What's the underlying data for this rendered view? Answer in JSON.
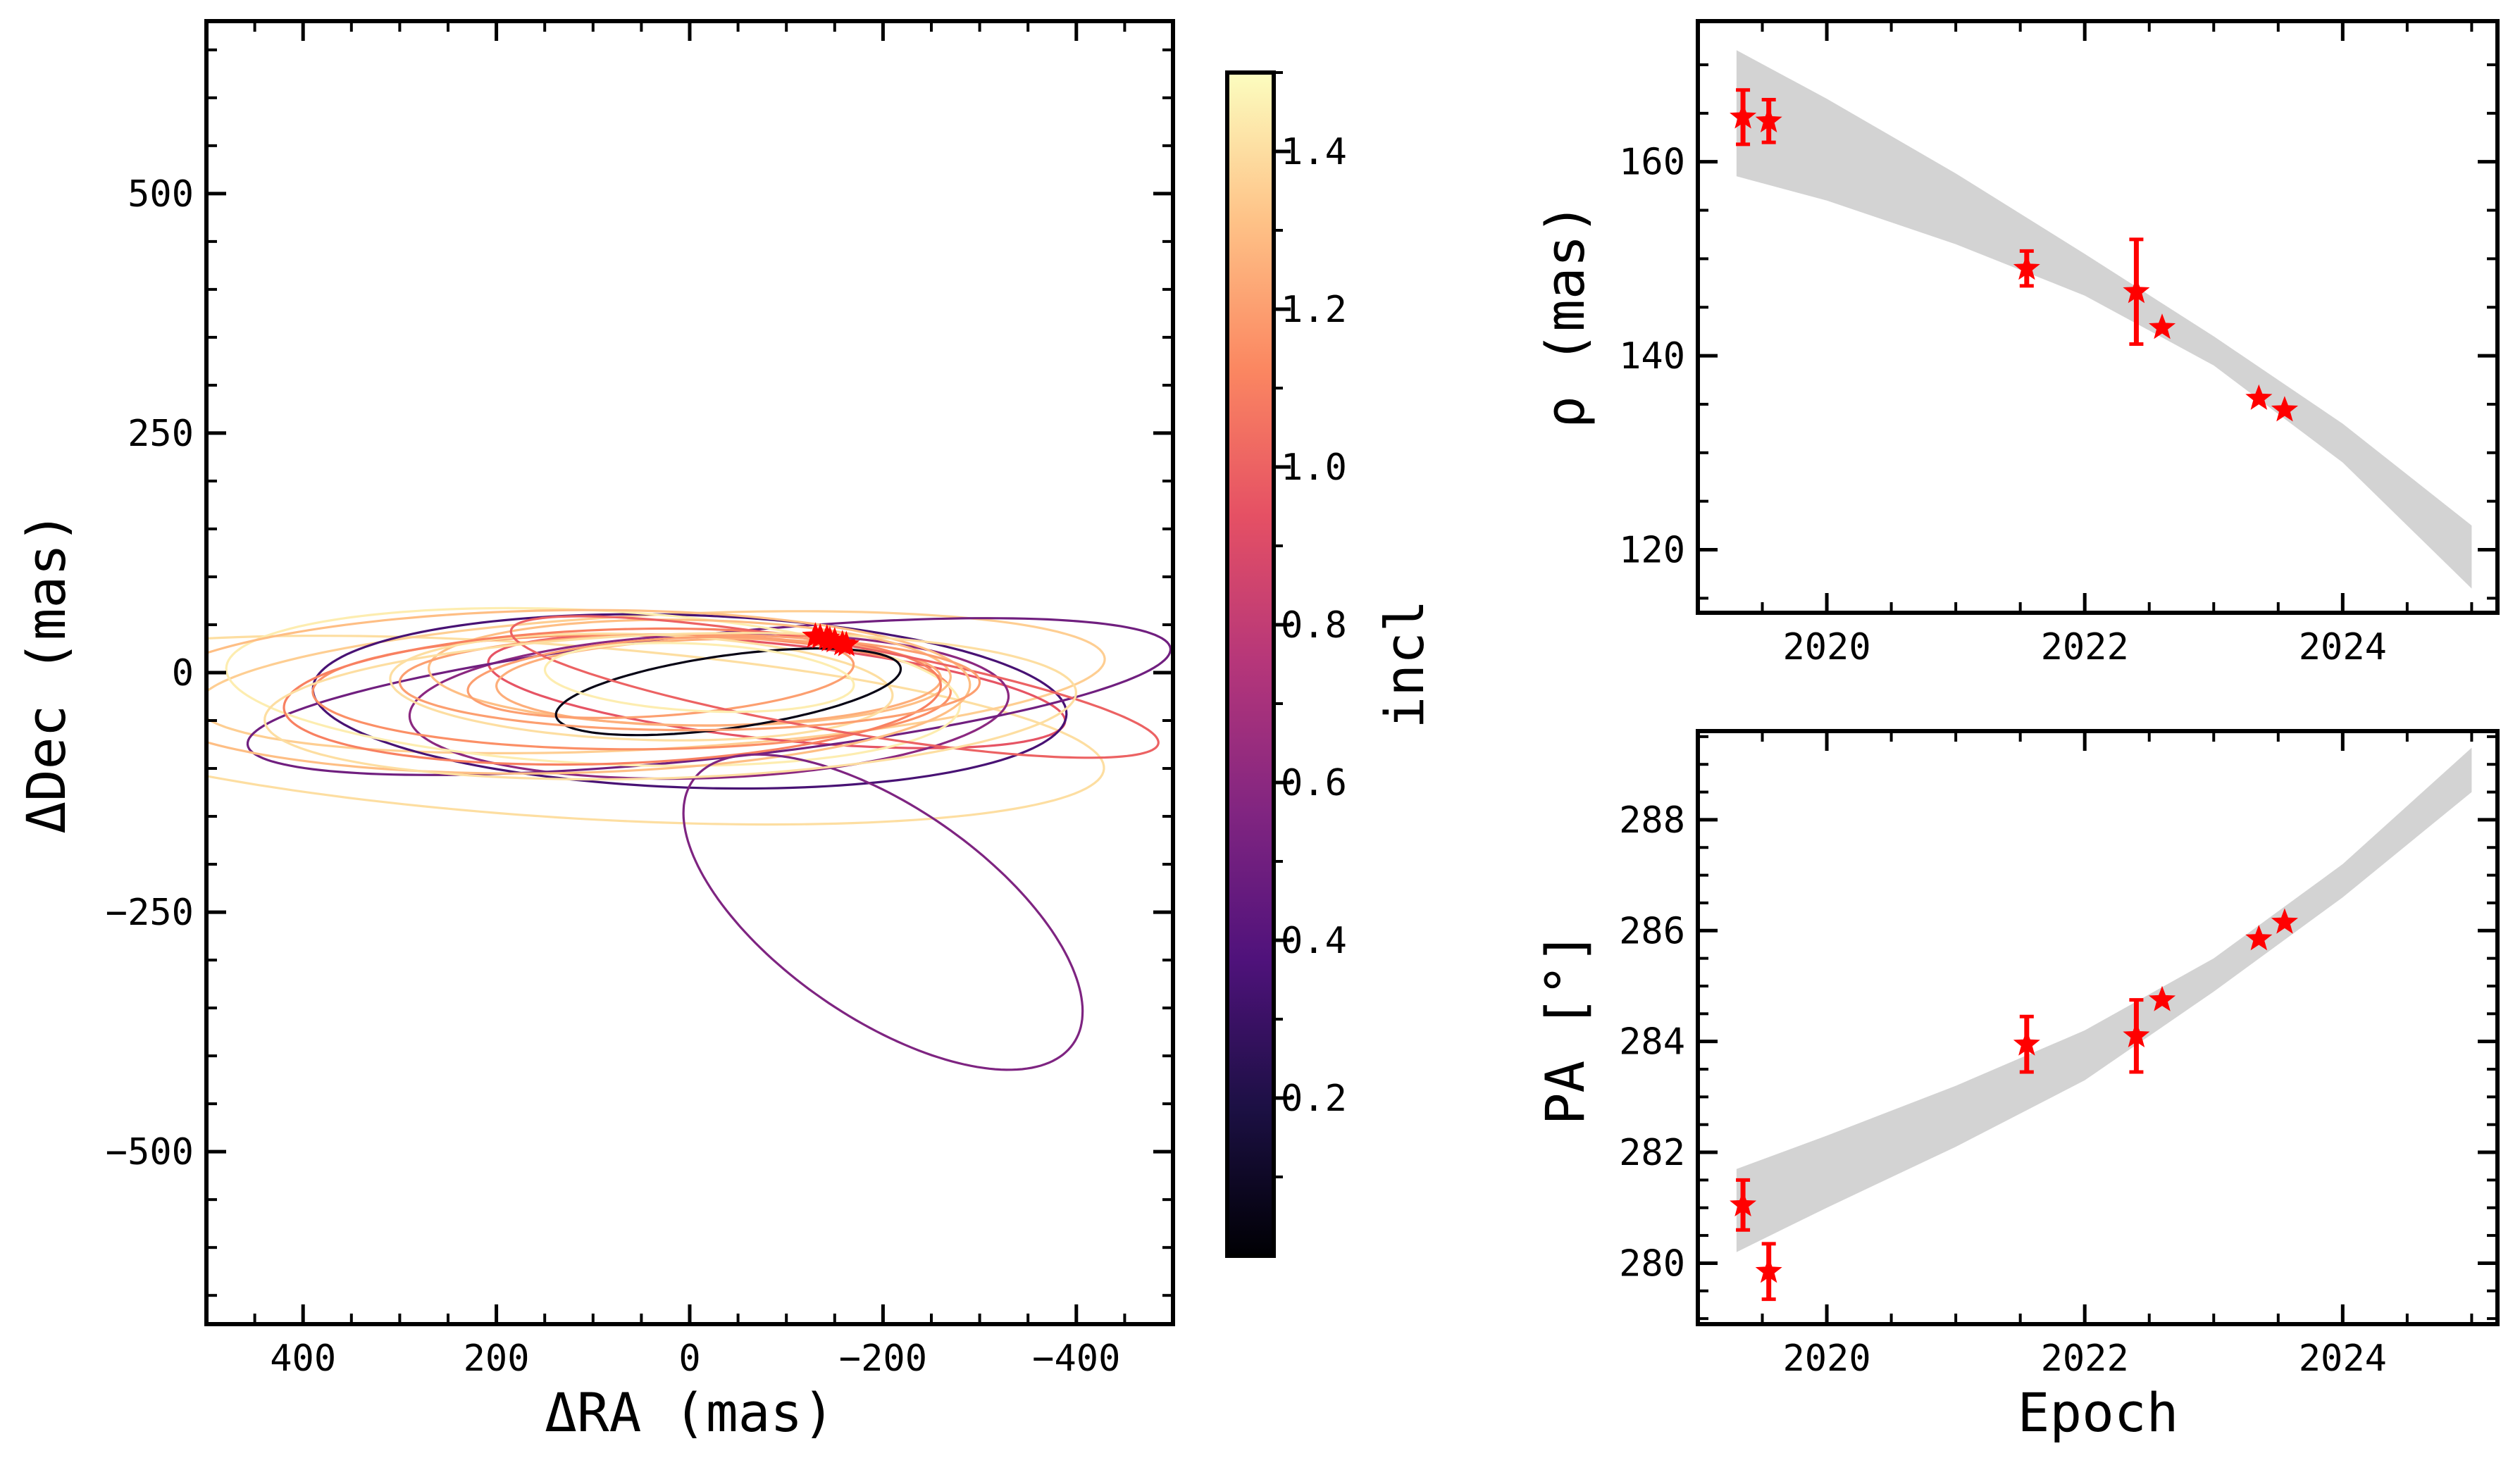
{
  "chart_data": [
    {
      "type": "line",
      "panel": "orbit-plot",
      "xlabel": "ΔRA (mas)",
      "ylabel": "ΔDec (mas)",
      "xlim": [
        500,
        -500
      ],
      "ylim": [
        -680,
        680
      ],
      "xticks": [
        400,
        200,
        0,
        -200,
        -400
      ],
      "xtick_labels": [
        "400",
        "200",
        "0",
        "−200",
        "−400"
      ],
      "yticks": [
        500,
        250,
        0,
        -250,
        -500
      ],
      "ytick_labels": [
        "500",
        "250",
        "0",
        "−250",
        "−500"
      ],
      "marker_color": "#ff0000",
      "observed_points": [
        {
          "ra": -130,
          "dec": 38
        },
        {
          "ra": -135,
          "dec": 37
        },
        {
          "ra": -142,
          "dec": 36
        },
        {
          "ra": -145,
          "dec": 34
        },
        {
          "ra": -150,
          "dec": 33
        },
        {
          "ra": -158,
          "dec": 30
        },
        {
          "ra": -162,
          "dec": 29
        }
      ],
      "orbits": [
        {
          "cx": 150,
          "cy": -60,
          "a": 580,
          "b": 90,
          "rot": 4,
          "inc": 1.4
        },
        {
          "cx": 40,
          "cy": -10,
          "a": 470,
          "b": 70,
          "rot": -3,
          "inc": 1.35
        },
        {
          "cx": -90,
          "cy": -20,
          "a": 300,
          "b": 50,
          "rot": 6,
          "inc": 0.95
        },
        {
          "cx": 0,
          "cy": -30,
          "a": 390,
          "b": 90,
          "rot": 2,
          "inc": 0.35
        },
        {
          "cx": -20,
          "cy": -35,
          "a": 310,
          "b": 75,
          "rot": -2,
          "inc": 0.6
        },
        {
          "cx": -20,
          "cy": -25,
          "a": 480,
          "b": 65,
          "rot": -6,
          "inc": 0.5
        },
        {
          "cx": 60,
          "cy": -20,
          "a": 330,
          "b": 60,
          "rot": 0,
          "inc": 1.15
        },
        {
          "cx": 100,
          "cy": -15,
          "a": 380,
          "b": 80,
          "rot": 3,
          "inc": 1.45
        },
        {
          "cx": 0,
          "cy": 0,
          "a": 270,
          "b": 55,
          "rot": 1,
          "inc": 1.3
        },
        {
          "cx": -30,
          "cy": -10,
          "a": 230,
          "b": 45,
          "rot": -1,
          "inc": 1.25
        },
        {
          "cx": 50,
          "cy": -15,
          "a": 260,
          "b": 55,
          "rot": 2,
          "inc": 1.4
        },
        {
          "cx": 30,
          "cy": -5,
          "a": 200,
          "b": 40,
          "rot": -4,
          "inc": 1.2
        },
        {
          "cx": -40,
          "cy": -20,
          "a": 180,
          "b": 38,
          "rot": -8,
          "inc": 0.05
        },
        {
          "cx": 80,
          "cy": -25,
          "a": 340,
          "b": 70,
          "rot": -2,
          "inc": 1.1
        },
        {
          "cx": -150,
          "cy": -15,
          "a": 340,
          "b": 45,
          "rot": 10,
          "inc": 1.0
        },
        {
          "cx": -10,
          "cy": -5,
          "a": 160,
          "b": 35,
          "rot": 3,
          "inc": 1.45
        },
        {
          "cx": 140,
          "cy": -20,
          "a": 430,
          "b": 85,
          "rot": -1,
          "inc": 1.3
        },
        {
          "cx": -200,
          "cy": -250,
          "a": 240,
          "b": 110,
          "rot": 35,
          "inc": 0.55
        },
        {
          "cx": 0,
          "cy": -10,
          "a": 300,
          "b": 50,
          "rot": 0,
          "inc": 1.2
        },
        {
          "cx": 20,
          "cy": -35,
          "a": 420,
          "b": 75,
          "rot": -2,
          "inc": 1.4
        }
      ]
    },
    {
      "type": "colorbar",
      "panel": "colorbar",
      "label": "incl",
      "range": [
        0.0,
        1.5
      ],
      "ticks": [
        0.2,
        0.4,
        0.6,
        0.8,
        1.0,
        1.2,
        1.4
      ],
      "tick_labels": [
        "0.2",
        "0.4",
        "0.6",
        "0.8",
        "1.0",
        "1.2",
        "1.4"
      ],
      "colormap": "magma",
      "colormap_stops": [
        "#000004",
        "#1c1044",
        "#4f127b",
        "#812581",
        "#b5367a",
        "#e55064",
        "#fb8761",
        "#fec287",
        "#fcfdbf"
      ]
    },
    {
      "type": "scatter",
      "panel": "separation-plot",
      "ylabel": "ρ (mas)",
      "xlim": [
        2019.0,
        2025.2
      ],
      "ylim": [
        113.5,
        174.5
      ],
      "xticks": [
        2020,
        2022,
        2024
      ],
      "xtick_labels": [
        "2020",
        "2022",
        "2024"
      ],
      "yticks": [
        120,
        140,
        160
      ],
      "ytick_labels": [
        "120",
        "140",
        "160"
      ],
      "model_band_color": "#d3d3d3",
      "marker_color": "#ff0000",
      "band": {
        "x": [
          2019.3,
          2020.0,
          2021.0,
          2022.0,
          2023.0,
          2024.0,
          2025.0
        ],
        "lower": [
          158.5,
          156.0,
          151.5,
          146.2,
          139.0,
          129.0,
          116.0
        ],
        "upper": [
          171.5,
          166.5,
          158.8,
          150.5,
          142.0,
          133.0,
          122.5
        ]
      },
      "points": [
        {
          "x": 2019.35,
          "y": 164.6,
          "err": 2.8
        },
        {
          "x": 2019.55,
          "y": 164.2,
          "err": 2.2
        },
        {
          "x": 2021.55,
          "y": 149.0,
          "err": 1.8
        },
        {
          "x": 2022.4,
          "y": 146.6,
          "err": 5.4
        },
        {
          "x": 2022.6,
          "y": 142.9,
          "err": 0.0
        },
        {
          "x": 2023.35,
          "y": 135.6,
          "err": 0.0
        },
        {
          "x": 2023.55,
          "y": 134.4,
          "err": 0.0
        }
      ]
    },
    {
      "type": "scatter",
      "panel": "position-angle-plot",
      "xlabel": "Epoch",
      "ylabel": "PA [°]",
      "xlim": [
        2019.0,
        2025.2
      ],
      "ylim": [
        278.9,
        289.6
      ],
      "xticks": [
        2020,
        2022,
        2024
      ],
      "xtick_labels": [
        "2020",
        "2022",
        "2024"
      ],
      "yticks": [
        280,
        282,
        284,
        286,
        288
      ],
      "ytick_labels": [
        "280",
        "282",
        "284",
        "286",
        "288"
      ],
      "model_band_color": "#d3d3d3",
      "marker_color": "#ff0000",
      "band": {
        "x": [
          2019.3,
          2020.0,
          2021.0,
          2022.0,
          2023.0,
          2024.0,
          2025.0
        ],
        "lower": [
          280.2,
          281.0,
          282.1,
          283.3,
          284.9,
          286.6,
          288.5
        ],
        "upper": [
          281.7,
          282.3,
          283.2,
          284.2,
          285.5,
          287.2,
          289.3
        ]
      },
      "points": [
        {
          "x": 2019.35,
          "y": 281.05,
          "err": 0.45
        },
        {
          "x": 2019.55,
          "y": 279.85,
          "err": 0.5
        },
        {
          "x": 2021.55,
          "y": 283.95,
          "err": 0.5
        },
        {
          "x": 2022.4,
          "y": 284.1,
          "err": 0.65
        },
        {
          "x": 2022.6,
          "y": 284.75,
          "err": 0.0
        },
        {
          "x": 2023.35,
          "y": 285.85,
          "err": 0.0
        },
        {
          "x": 2023.55,
          "y": 286.15,
          "err": 0.0
        }
      ]
    }
  ]
}
